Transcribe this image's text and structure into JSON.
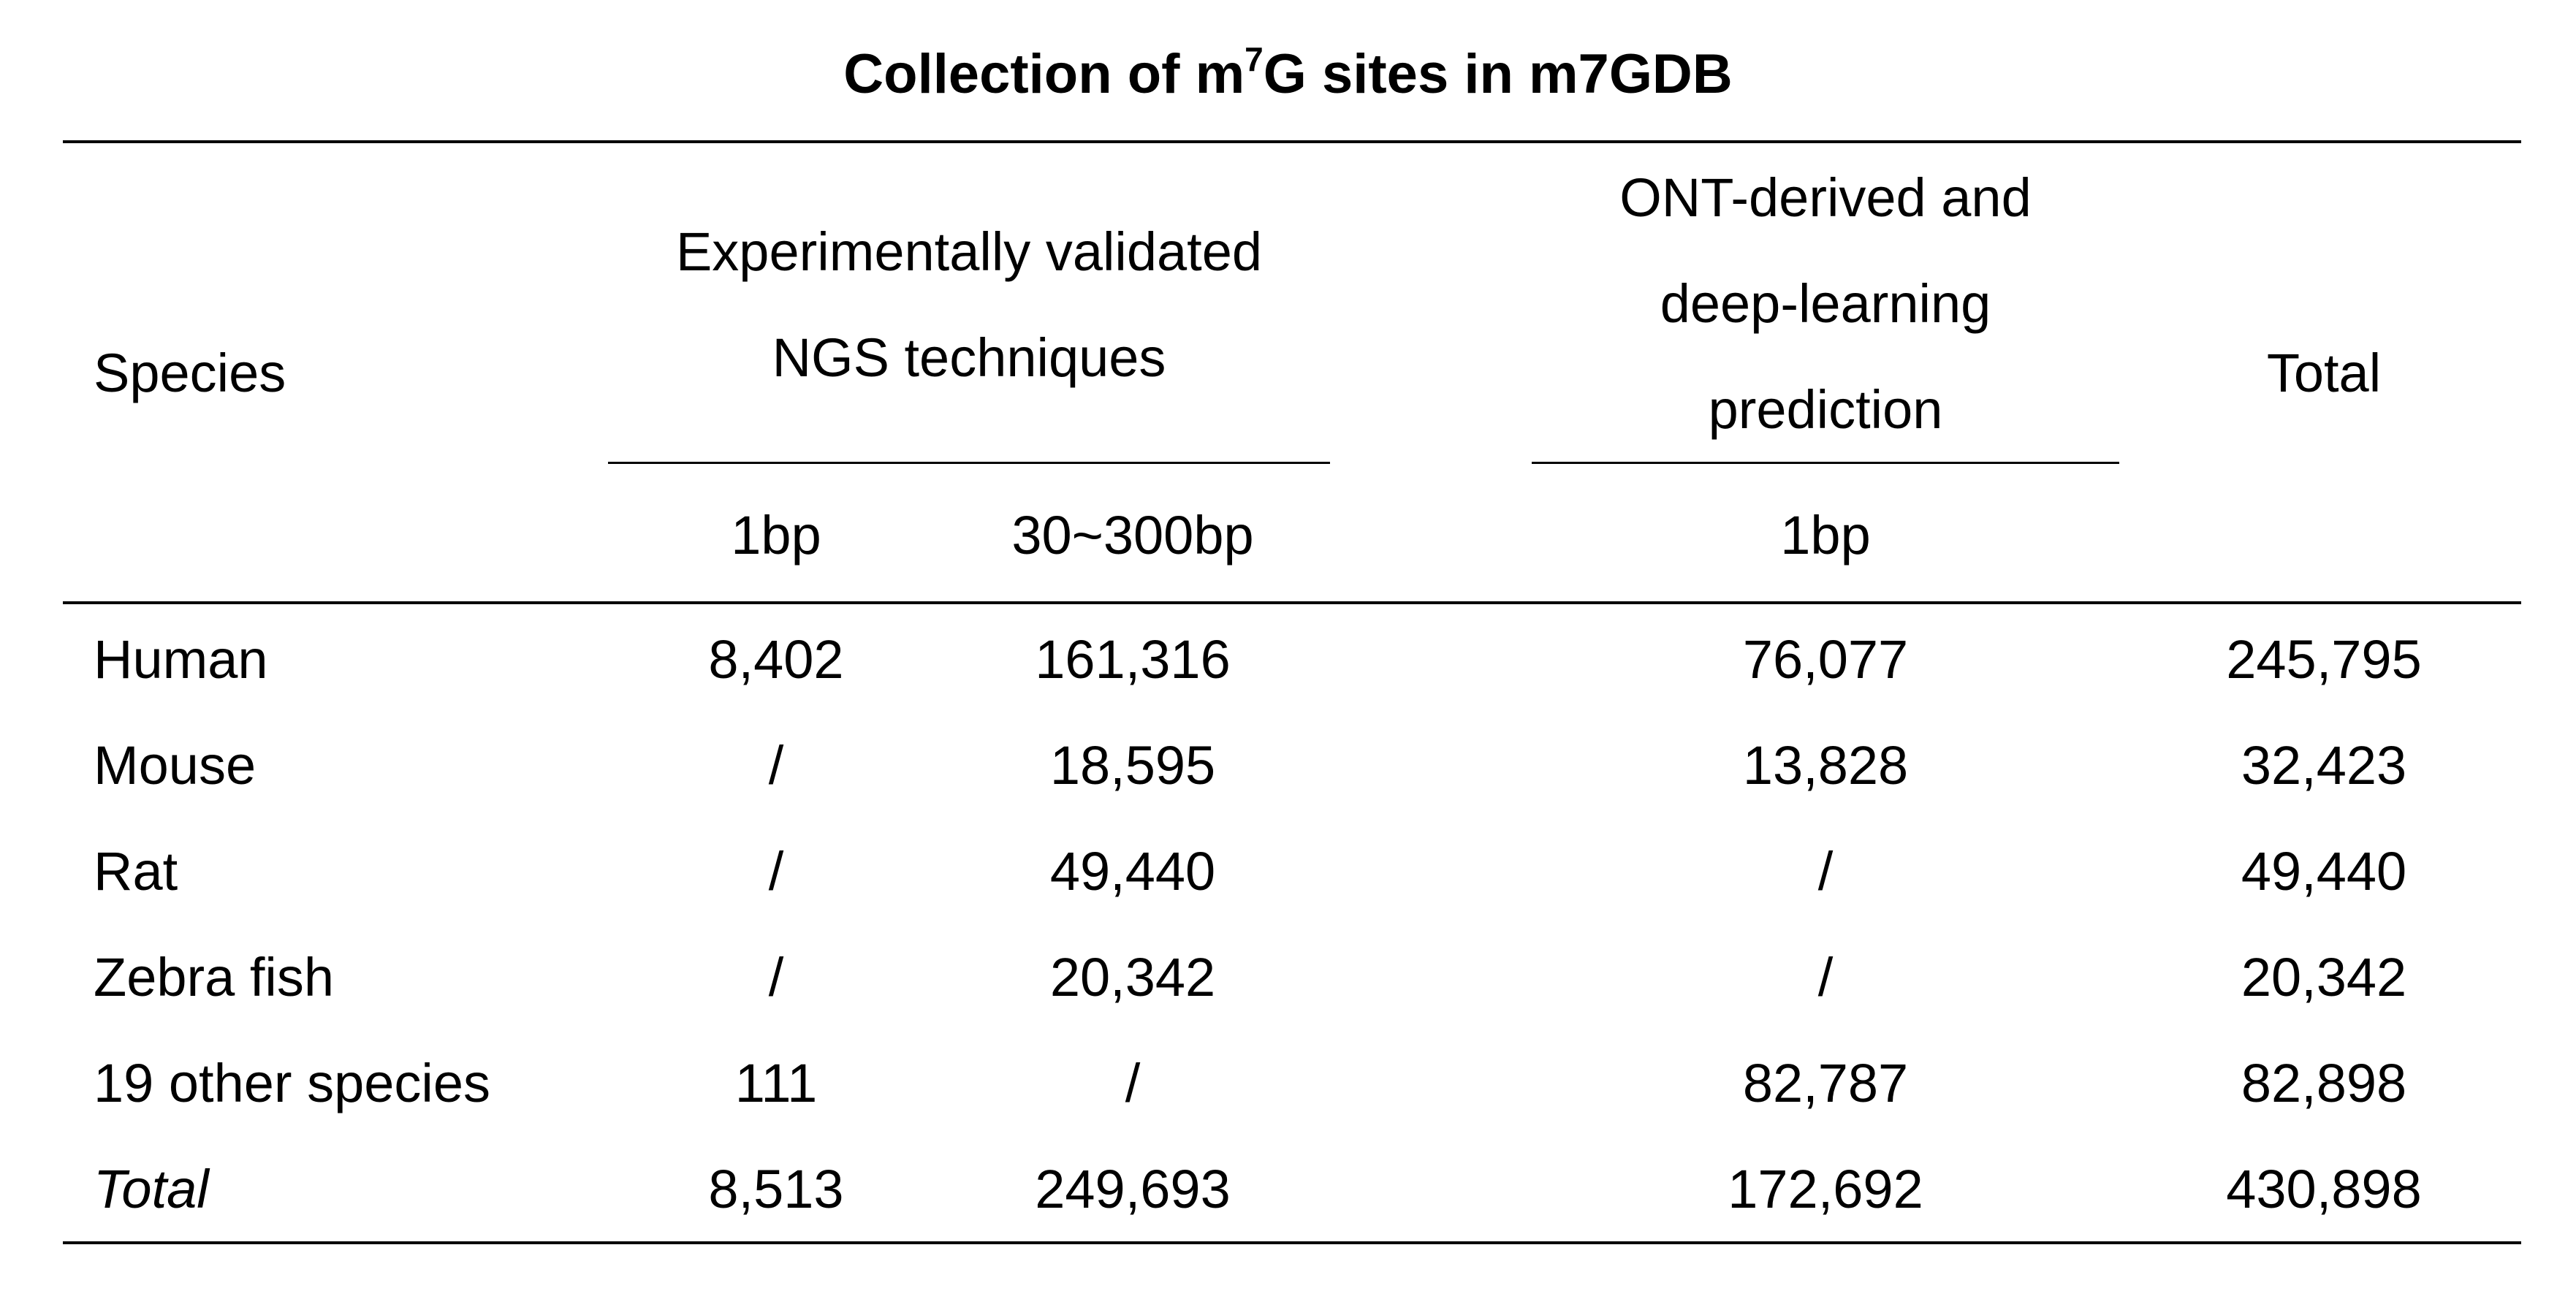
{
  "title": {
    "prefix": "Collection of m",
    "superscript": "7",
    "suffix": "G sites in m7GDB"
  },
  "header": {
    "species": "Species",
    "group_ngs_line1": "Experimentally validated",
    "group_ngs_line2": "NGS techniques",
    "group_ont_line1": "ONT-derived and",
    "group_ont_line2": "deep-learning",
    "group_ont_line3": "prediction",
    "total": "Total",
    "sub_ngs_1bp": "1bp",
    "sub_ngs_range": "30~300bp",
    "sub_ont_1bp": "1bp"
  },
  "rows": [
    {
      "species": "Human",
      "ngs_1bp": "8,402",
      "ngs_range": "161,316",
      "ont_1bp": "76,077",
      "total": "245,795"
    },
    {
      "species": "Mouse",
      "ngs_1bp": "/",
      "ngs_range": "18,595",
      "ont_1bp": "13,828",
      "total": "32,423"
    },
    {
      "species": "Rat",
      "ngs_1bp": "/",
      "ngs_range": "49,440",
      "ont_1bp": "/",
      "total": "49,440"
    },
    {
      "species": "Zebra fish",
      "ngs_1bp": "/",
      "ngs_range": "20,342",
      "ont_1bp": "/",
      "total": "20,342"
    },
    {
      "species": "19 other species",
      "ngs_1bp": "111",
      "ngs_range": "/",
      "ont_1bp": "82,787",
      "total": "82,898"
    },
    {
      "species": "Total",
      "ngs_1bp": "8,513",
      "ngs_range": "249,693",
      "ont_1bp": "172,692",
      "total": "430,898"
    }
  ]
}
